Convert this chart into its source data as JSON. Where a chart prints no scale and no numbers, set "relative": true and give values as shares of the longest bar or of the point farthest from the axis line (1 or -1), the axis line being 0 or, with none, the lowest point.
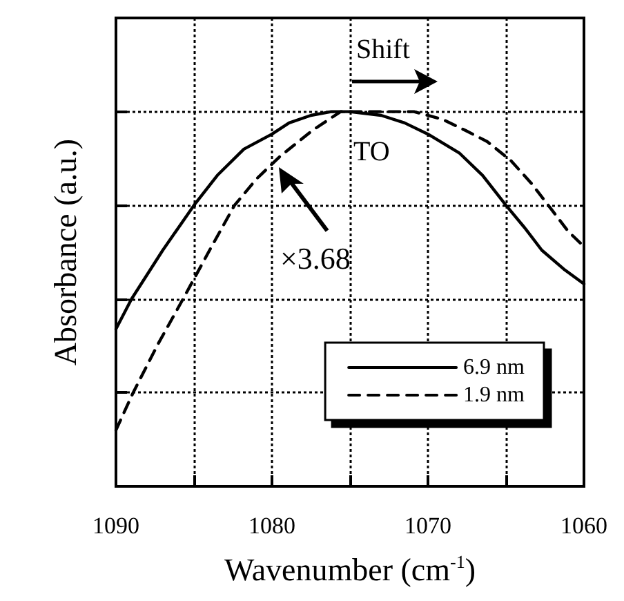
{
  "chart_data": {
    "type": "line",
    "xlabel": "Wavenumber (cm$^{-1}$)",
    "ylabel": "Absorbance (a.u.)",
    "relative": true,
    "xlim": [
      1090,
      1060
    ],
    "xticks": [
      1090,
      {
        "value": 1085,
        "label": null
      },
      1080,
      {
        "value": 1075,
        "label": null
      },
      1070,
      {
        "value": 1065,
        "label": null
      },
      1060
    ],
    "grid": true,
    "legend": "bottom right",
    "marker": "none",
    "annotations": [
      "Shift",
      "TO",
      "×3.68"
    ],
    "series": [
      {
        "name": "6.9 nm",
        "color": "#000000",
        "line_style": "solid",
        "x": [
          1090,
          1089,
          1087,
          1085,
          1083.5,
          1081.8,
          1080,
          1078.9,
          1077.5,
          1076.2,
          1075,
          1073,
          1071.5,
          1070,
          1068,
          1066.5,
          1065,
          1063.8,
          1062.7,
          1061.3,
          1060
        ],
        "values": [
          0.42,
          0.5,
          0.63,
          0.75,
          0.83,
          0.9,
          0.94,
          0.97,
          0.99,
          1.0,
          1.0,
          0.99,
          0.97,
          0.94,
          0.89,
          0.83,
          0.75,
          0.69,
          0.63,
          0.58,
          0.54
        ]
      },
      {
        "name": "1.9 nm",
        "color": "#000000",
        "line_style": "dashed",
        "x": [
          1090,
          1088.9,
          1087.3,
          1085.7,
          1084,
          1082.4,
          1081,
          1079.5,
          1077.4,
          1075.6,
          1073,
          1070.9,
          1069.1,
          1067.6,
          1066.2,
          1064.7,
          1063.4,
          1062.1,
          1061,
          1060
        ],
        "values": [
          0.15,
          0.25,
          0.38,
          0.5,
          0.63,
          0.75,
          0.82,
          0.88,
          0.95,
          1.0,
          1.0,
          1.0,
          0.98,
          0.95,
          0.92,
          0.87,
          0.81,
          0.74,
          0.68,
          0.64
        ]
      }
    ]
  }
}
